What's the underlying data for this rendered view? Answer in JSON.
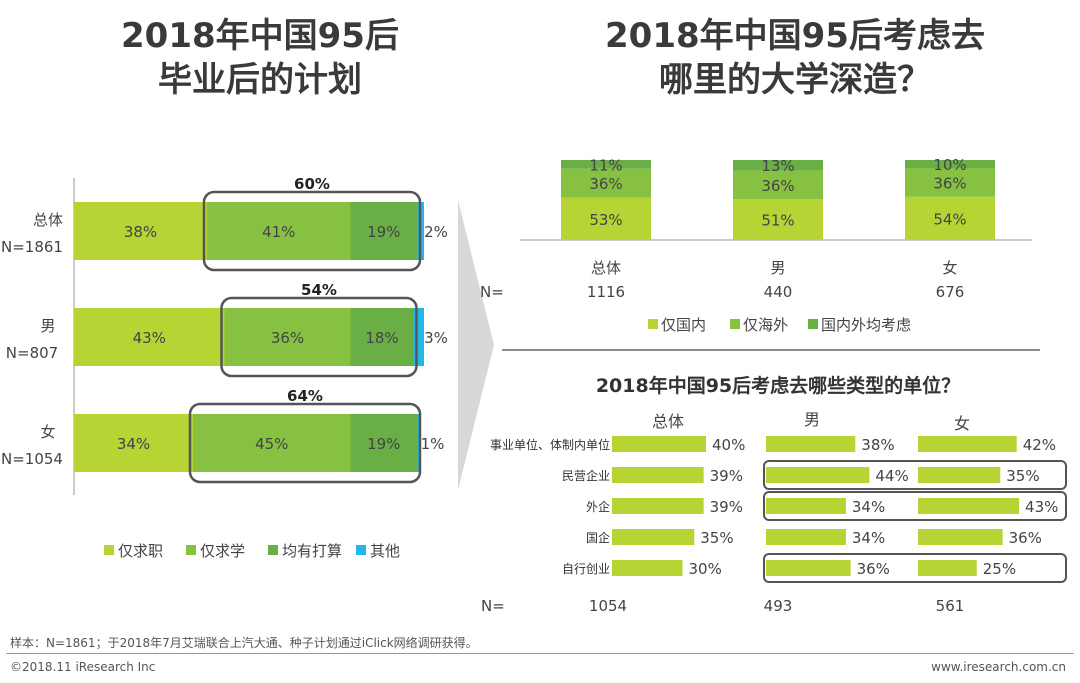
{
  "colors": {
    "lime": "#b6d433",
    "green": "#86c142",
    "dark_green": "#6aaf46",
    "cyan": "#21b8e8",
    "box": "#555555",
    "arrow": "#d8d8d8"
  },
  "title_left": [
    "2018年中国95后",
    "毕业后的计划"
  ],
  "title_right": [
    "2018年中国95后考虑去",
    "哪里的大学深造？"
  ],
  "chart_data": [
    {
      "id": "plans",
      "type": "bar",
      "orientation": "horizontal-stacked",
      "title": "2018年中国95后毕业后的计划",
      "categories": [
        "总体",
        "男",
        "女"
      ],
      "category_n": [
        "N=1861",
        "N=807",
        "N=1054"
      ],
      "series": [
        {
          "name": "仅求职",
          "values": [
            38,
            43,
            34
          ]
        },
        {
          "name": "仅求学",
          "values": [
            41,
            36,
            45
          ]
        },
        {
          "name": "均有打算",
          "values": [
            19,
            18,
            19
          ]
        },
        {
          "name": "其他",
          "values": [
            2,
            3,
            1
          ]
        }
      ],
      "highlight_totals": [
        "60%",
        "54%",
        "64%"
      ],
      "value_suffix": "%"
    },
    {
      "id": "study_destination",
      "type": "bar",
      "orientation": "vertical-stacked",
      "title": "2018年中国95后考虑去哪里的大学深造？",
      "categories": [
        "总体",
        "男",
        "女"
      ],
      "n_label": "N=",
      "n_values": [
        "1116",
        "440",
        "676"
      ],
      "series": [
        {
          "name": "仅国内",
          "values": [
            53,
            51,
            54
          ]
        },
        {
          "name": "仅海外",
          "values": [
            36,
            36,
            36
          ]
        },
        {
          "name": "国内外均考虑",
          "values": [
            11,
            13,
            10
          ]
        }
      ],
      "value_suffix": "%"
    },
    {
      "id": "employer_type",
      "type": "bar",
      "orientation": "horizontal",
      "title": "2018年中国95后考虑去哪些类型的单位？",
      "categories": [
        "事业单位、体制内单位",
        "民营企业",
        "外企",
        "国企",
        "自行创业"
      ],
      "groups": [
        "总体",
        "男",
        "女"
      ],
      "n_label": "N=",
      "n_values": [
        "1054",
        "493",
        "561"
      ],
      "series": [
        {
          "name": "总体",
          "values": [
            40,
            39,
            39,
            35,
            30
          ]
        },
        {
          "name": "男",
          "values": [
            38,
            44,
            34,
            34,
            36
          ]
        },
        {
          "name": "女",
          "values": [
            42,
            35,
            43,
            36,
            25
          ]
        }
      ],
      "highlighted_rows": [
        1,
        2,
        4
      ],
      "value_suffix": "%"
    }
  ],
  "footer": {
    "sample": "样本：N=1861；于2018年7月艾瑞联合上汽大通、种子计划通过iClick网络调研获得。",
    "copyright": "©2018.11 iResearch Inc",
    "website": "www.iresearch.com.cn"
  }
}
